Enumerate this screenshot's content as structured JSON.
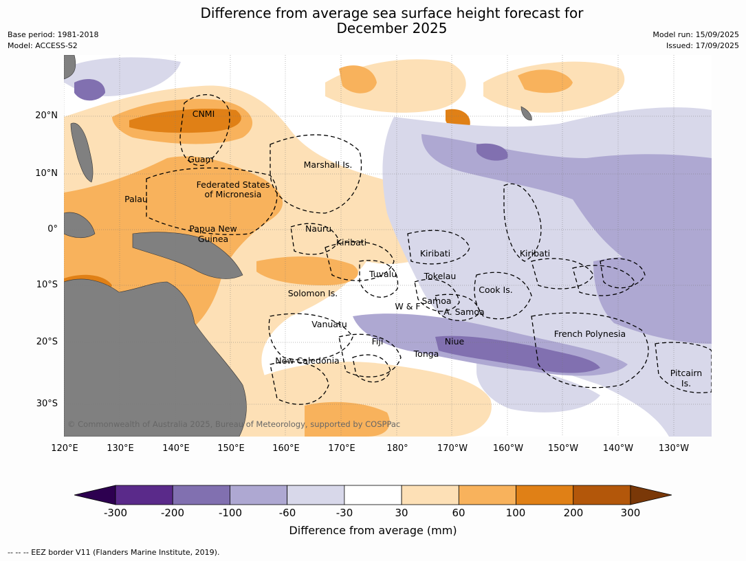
{
  "title_line1": "Difference from average sea surface height forecast for",
  "title_line2": "December 2025",
  "base_period": "Base period: 1981-2018",
  "model": "Model: ACCESS-S2",
  "model_run": "Model run: 15/09/2025",
  "issued": "Issued: 17/09/2025",
  "copyright": "© Commonwealth of Australia 2025, Bureau of Meteorology, supported by COSPPac",
  "footer": "-- -- -- EEZ border V11 (Flanders Marine Institute, 2019).",
  "lat_labels": [
    "20°N",
    "10°N",
    "0°",
    "10°S",
    "20°S",
    "30°S"
  ],
  "lon_labels": [
    "120°E",
    "130°E",
    "140°E",
    "150°E",
    "160°E",
    "170°E",
    "180°",
    "170°W",
    "160°W",
    "150°W",
    "140°W",
    "130°W"
  ],
  "colorbar": {
    "title": "Difference from average (mm)",
    "ticks": [
      "-300",
      "-200",
      "-100",
      "-60",
      "-30",
      "30",
      "60",
      "100",
      "200",
      "300"
    ],
    "colors": [
      "#5a2a8a",
      "#8170b0",
      "#aea8d2",
      "#d8d8ea",
      "#ffffff",
      "#fde0b6",
      "#f8b25c",
      "#e08016",
      "#b3570a"
    ],
    "low_extend": "#2d0050",
    "high_extend": "#7a3808"
  },
  "colors": {
    "land": "#808080",
    "ocean": "#ffffff"
  },
  "regions": [
    "CNMI",
    "Guam",
    "Marshall Is.",
    "Federated States",
    "of Micronesia",
    "Palau",
    "Papua New",
    "Guinea",
    "Nauru",
    "Kiribati",
    "Kiribati",
    "Kiribati",
    "Tuvalu",
    "Tokelau",
    "Solomon Is.",
    "Cook Is.",
    "Samoa",
    "W & F",
    "A. Samoa",
    "Vanuatu",
    "Fiji",
    "Niue",
    "French Polynesia",
    "Tonga",
    "New Caledonia",
    "Pitcairn",
    "Is."
  ]
}
